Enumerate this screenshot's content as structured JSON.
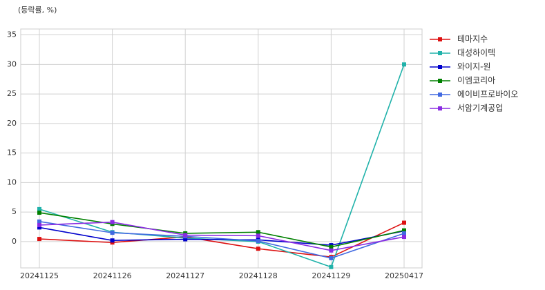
{
  "chart_data": {
    "type": "line",
    "subtitle": "(등락률, %)",
    "categories": [
      "20241125",
      "20241126",
      "20241127",
      "20241128",
      "20241129",
      "20250417"
    ],
    "series": [
      {
        "name": "테마지수",
        "color": "#dd1111",
        "values": [
          0.45,
          -0.15,
          0.8,
          -1.2,
          -2.6,
          3.2
        ]
      },
      {
        "name": "대성하이텍",
        "color": "#20b2aa",
        "values": [
          5.5,
          1.6,
          0.6,
          0.0,
          -4.3,
          30.0
        ]
      },
      {
        "name": "와이지-원",
        "color": "#0000cc",
        "values": [
          2.4,
          0.2,
          0.4,
          0.3,
          -0.6,
          1.8
        ]
      },
      {
        "name": "이엠코리아",
        "color": "#008000",
        "values": [
          4.9,
          3.0,
          1.4,
          1.6,
          -0.9,
          1.9
        ]
      },
      {
        "name": "에이비프로바이오",
        "color": "#4169e1",
        "values": [
          3.4,
          1.5,
          0.9,
          0.1,
          -2.8,
          1.4
        ]
      },
      {
        "name": "서암기계공업",
        "color": "#8a2be2",
        "values": [
          2.8,
          3.3,
          1.1,
          1.0,
          -1.5,
          0.8
        ]
      }
    ],
    "ylim": [
      -4.45,
      36
    ],
    "yticks": [
      0,
      5,
      10,
      15,
      20,
      25,
      30,
      35
    ],
    "grid": true,
    "legend": "outside-right"
  }
}
